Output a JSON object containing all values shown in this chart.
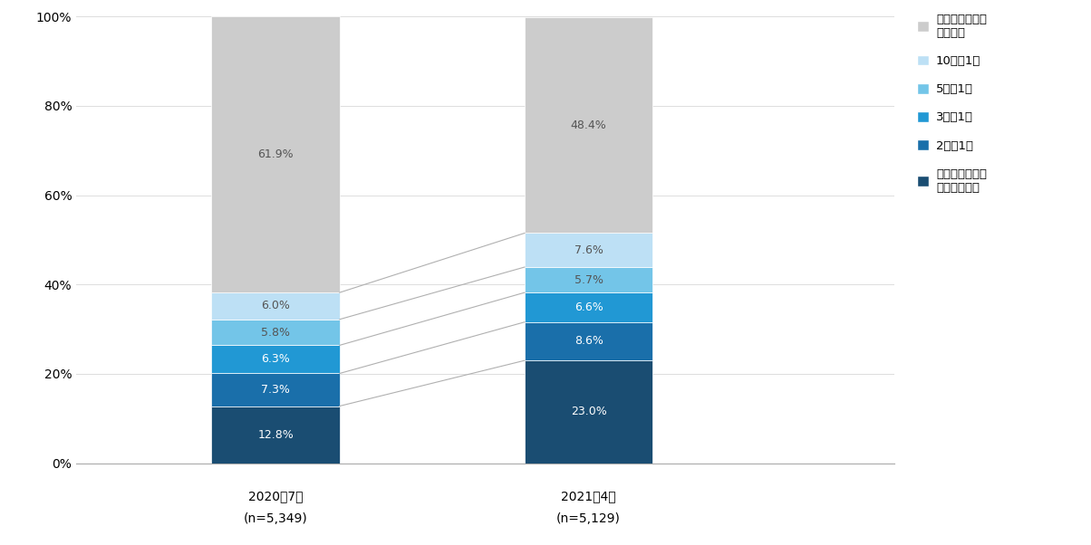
{
  "categories_line1": [
    "2020年7月",
    "2021年4月"
  ],
  "categories_line2": [
    "(n=5,349)",
    "(n=5,129)"
  ],
  "segments": [
    {
      "label": "すべてリモート\n面談でもよい",
      "values": [
        12.8,
        23.0
      ],
      "color": "#1a4d72"
    },
    {
      "label": "2回に1回",
      "values": [
        7.3,
        8.6
      ],
      "color": "#1a6faa"
    },
    {
      "label": "3回に1回",
      "values": [
        6.3,
        6.6
      ],
      "color": "#2198d4"
    },
    {
      "label": "5回に1回",
      "values": [
        5.8,
        5.7
      ],
      "color": "#73c5e8"
    },
    {
      "label": "10回に1回",
      "values": [
        6.0,
        7.6
      ],
      "color": "#bde0f5"
    },
    {
      "label": "リモート面談は\nいらない",
      "values": [
        61.9,
        48.4
      ],
      "color": "#cccccc"
    }
  ],
  "bar_width": 0.18,
  "bar_positions": [
    0.28,
    0.72
  ],
  "xlim": [
    0.0,
    1.15
  ],
  "ylim": [
    0,
    100
  ],
  "yticks": [
    0,
    20,
    40,
    60,
    80,
    100
  ],
  "yticklabels": [
    "0%",
    "20%",
    "40%",
    "60%",
    "80%",
    "100%"
  ],
  "legend_labels": [
    "リモート面談は\nいらない",
    "10回に1回",
    "5回に1回",
    "3回に1回",
    "2回に1回",
    "すべてリモート\n面談でもよい"
  ],
  "legend_colors": [
    "#cccccc",
    "#bde0f5",
    "#73c5e8",
    "#2198d4",
    "#1a6faa",
    "#1a4d72"
  ],
  "bg_color": "#ffffff",
  "connector_color": "#b0b0b0",
  "text_color_dark": "#555555",
  "text_color_light": "#ffffff"
}
